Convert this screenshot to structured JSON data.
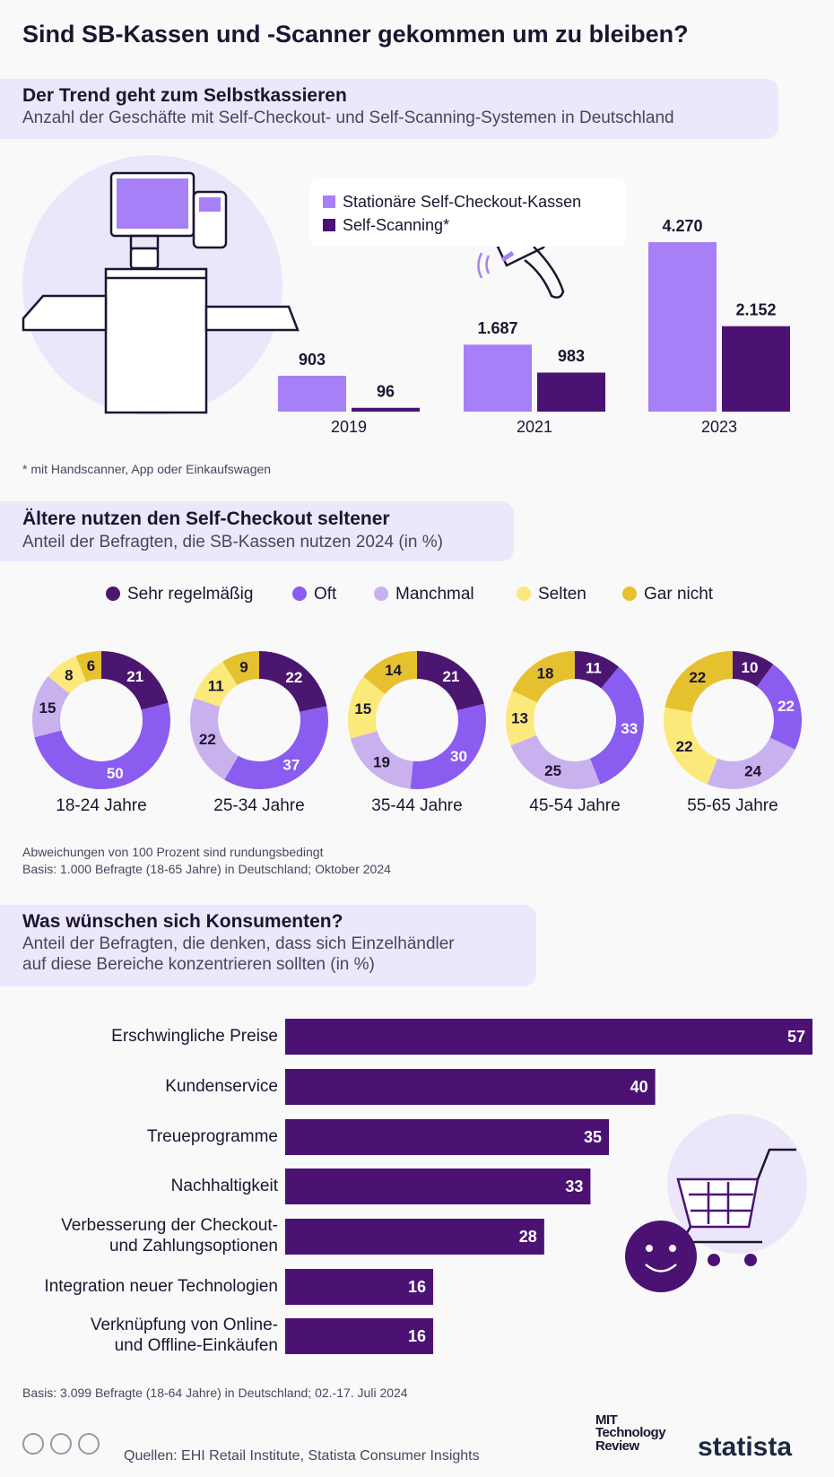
{
  "title": "Sind SB-Kassen und -Scanner gekommen um zu bleiben?",
  "chart_data": [
    {
      "type": "bar",
      "title": "Der Trend geht zum Selbstkassieren",
      "subtitle": "Anzahl der Geschäfte mit Self-Checkout- und Self-Scanning-Systemen in Deutschland",
      "categories": [
        "2019",
        "2021",
        "2023"
      ],
      "series": [
        {
          "name": "Stationäre Self-Checkout-Kassen",
          "color": "#a77ff6",
          "values": [
            903,
            1687,
            4270
          ],
          "value_labels": [
            "903",
            "1.687",
            "4.270"
          ]
        },
        {
          "name": "Self-Scanning*",
          "color": "#4b1274",
          "values": [
            96,
            983,
            2152
          ],
          "value_labels": [
            "96",
            "983",
            "2.152"
          ]
        }
      ],
      "footnote": "* mit Handscanner, App oder Einkaufswagen"
    },
    {
      "type": "donut",
      "title": "Ältere nutzen den Self-Checkout seltener",
      "subtitle": "Anteil der Befragten, die SB-Kassen nutzen 2024 (in %)",
      "categories": [
        "Sehr regelmäßig",
        "Oft",
        "Manchmal",
        "Selten",
        "Gar nicht"
      ],
      "colors": [
        "#4b1670",
        "#8a5cf0",
        "#c9b1ee",
        "#fbe97c",
        "#e5c12f"
      ],
      "series": [
        {
          "name": "18-24 Jahre",
          "values": [
            21,
            50,
            15,
            8,
            6
          ]
        },
        {
          "name": "25-34 Jahre",
          "values": [
            22,
            37,
            22,
            11,
            9
          ]
        },
        {
          "name": "35-44 Jahre",
          "values": [
            21,
            30,
            19,
            15,
            14
          ]
        },
        {
          "name": "45-54 Jahre",
          "values": [
            11,
            33,
            25,
            13,
            18
          ]
        },
        {
          "name": "55-65 Jahre",
          "values": [
            10,
            22,
            24,
            22,
            22
          ]
        }
      ],
      "notes": [
        "Abweichungen von 100 Prozent sind rundungsbedingt",
        "Basis: 1.000 Befragte (18-65 Jahre) in Deutschland; Oktober 2024"
      ]
    },
    {
      "type": "barh",
      "title": "Was wünschen sich Konsumenten?",
      "subtitle": "Anteil der Befragten, die denken, dass sich Einzelhändler\nauf diese Bereiche konzentrieren sollten (in %)",
      "categories": [
        "Erschwingliche Preise",
        "Kundenservice",
        "Treueprogramme",
        "Nachhaltigkeit",
        "Verbesserung der Checkout-\nund Zahlungsoptionen",
        "Integration neuer Technologien",
        "Verknüpfung von Online-\nund Offline-Einkäufen"
      ],
      "values": [
        57,
        40,
        35,
        33,
        28,
        16,
        16
      ],
      "color": "#4b1274",
      "note": "Basis: 3.099 Befragte (18-64 Jahre) in Deutschland; 02.-17. Juli 2024"
    }
  ],
  "sources": "Quellen: EHI Retail Institute, Statista Consumer Insights",
  "logos": [
    "MIT\nTechnology\nReview",
    "statista"
  ]
}
